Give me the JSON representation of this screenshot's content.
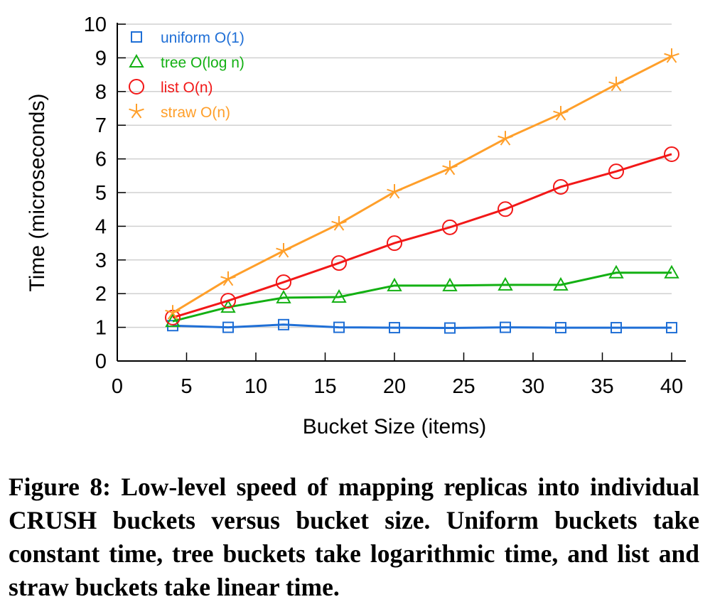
{
  "chart_data": {
    "type": "line",
    "xlabel": "Bucket Size (items)",
    "ylabel": "Time (microseconds)",
    "xlim": [
      0,
      40
    ],
    "ylim": [
      0,
      10
    ],
    "xticks": [
      0,
      5,
      10,
      15,
      20,
      25,
      30,
      35,
      40
    ],
    "yticks": [
      0,
      1,
      2,
      3,
      4,
      5,
      6,
      7,
      8,
      9,
      10
    ],
    "grid": "horizontal",
    "legend_position": "top-left",
    "x": [
      4,
      8,
      12,
      16,
      20,
      24,
      28,
      32,
      36,
      40
    ],
    "series": [
      {
        "name": "uniform O(1)",
        "color": "#1f6fd6",
        "marker": "square",
        "values": [
          1.05,
          1.0,
          1.08,
          1.0,
          0.99,
          0.98,
          1.0,
          0.99,
          0.99,
          0.99
        ]
      },
      {
        "name": "tree O(log n)",
        "color": "#13b013",
        "marker": "triangle",
        "values": [
          1.18,
          1.6,
          1.88,
          1.9,
          2.24,
          2.24,
          2.26,
          2.26,
          2.62,
          2.62
        ]
      },
      {
        "name": "list O(n)",
        "color": "#f21818",
        "marker": "circle",
        "values": [
          1.29,
          1.79,
          2.34,
          2.91,
          3.5,
          3.97,
          4.51,
          5.17,
          5.63,
          6.14
        ]
      },
      {
        "name": "straw O(n)",
        "color": "#ff9f2a",
        "marker": "star",
        "values": [
          1.43,
          2.43,
          3.27,
          4.07,
          5.02,
          5.72,
          6.6,
          7.34,
          8.21,
          9.05
        ]
      }
    ]
  },
  "caption": "Figure 8: Low-level speed of mapping replicas into individual CRUSH buckets versus bucket size. Uniform buckets take constant time, tree buckets take logarithmic time, and list and straw buckets take linear time."
}
